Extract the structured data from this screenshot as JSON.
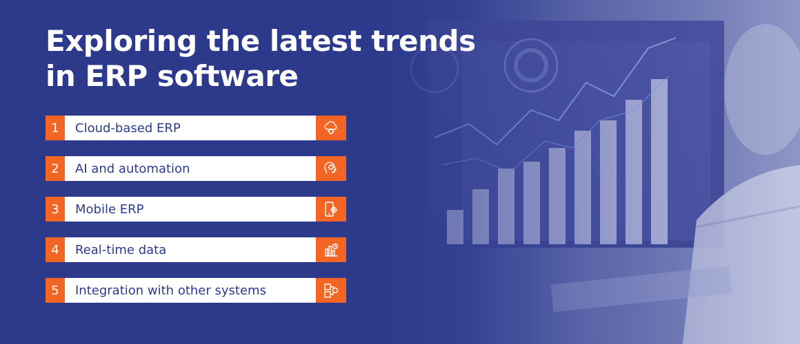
{
  "title": {
    "line1": "Exploring the latest trends",
    "line2": "in ERP software"
  },
  "items": [
    {
      "number": "1",
      "label": "Cloud-based ERP",
      "icon": "cloud-gear-icon"
    },
    {
      "number": "2",
      "label": "AI and automation",
      "icon": "ai-head-icon"
    },
    {
      "number": "3",
      "label": "Mobile ERP",
      "icon": "mobile-gear-icon"
    },
    {
      "number": "4",
      "label": "Real-time data",
      "icon": "bar-chart-clock-icon"
    },
    {
      "number": "5",
      "label": "Integration with other systems",
      "icon": "integration-icon"
    }
  ],
  "colors": {
    "background": "#2d3a8c",
    "accent": "#f26522",
    "text_dark": "#2d3a8c",
    "text_light": "#ffffff"
  }
}
